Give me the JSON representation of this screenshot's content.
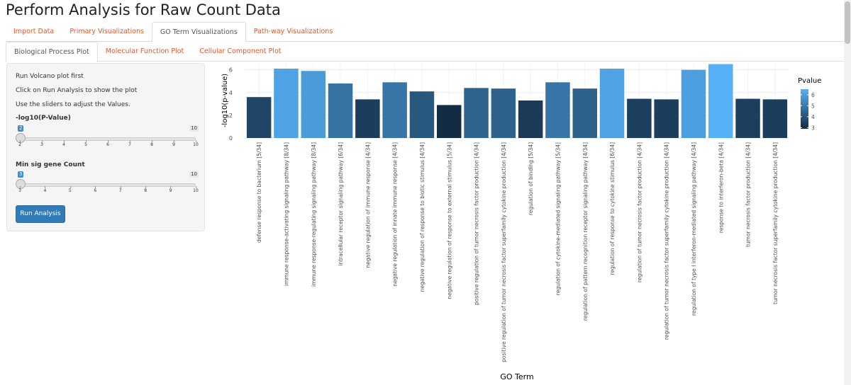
{
  "app": {
    "title": "Perform Analysis for Raw Count Data"
  },
  "main_tabs": [
    {
      "label": "Import Data",
      "active": false
    },
    {
      "label": "Primary Visualizations",
      "active": false
    },
    {
      "label": "GO Term Visualizations",
      "active": true
    },
    {
      "label": "Path-way Visualizations",
      "active": false
    }
  ],
  "sub_tabs": [
    {
      "label": "Biological Process Plot",
      "active": true
    },
    {
      "label": "Molecular Function Plot",
      "active": false
    },
    {
      "label": "Cellular Component Plot",
      "active": false
    }
  ],
  "sidebar": {
    "line1": "Run Volcano plot first",
    "line2": "Click on Run Analysis to show the plot",
    "line3": "Use the sliders to adjust the Values.",
    "slider1": {
      "label": "-log10(P-Value)",
      "value": "2",
      "max_label": "10",
      "ticks": [
        "2",
        "3",
        "4",
        "5",
        "6",
        "7",
        "8",
        "9",
        "10"
      ]
    },
    "slider2": {
      "label": "Min sig gene Count",
      "value": "3",
      "max_label": "10",
      "ticks": [
        "3",
        "4",
        "5",
        "6",
        "7",
        "8",
        "9",
        "10"
      ]
    },
    "run_button": "Run Analysis"
  },
  "colors": {
    "accent": "#e4572e",
    "button": "#337ab7",
    "low": "#132b43",
    "high": "#56b1f7"
  },
  "chart_data": {
    "type": "bar",
    "xlabel": "GO Term",
    "ylabel": "-log10(p-value)",
    "ylim": [
      0,
      6.6
    ],
    "yticks": [
      0,
      2,
      4,
      6
    ],
    "grid": true,
    "legend": {
      "title": "Pvalue",
      "placement": "right",
      "ticks": [
        3,
        4,
        5,
        6
      ]
    },
    "categories": [
      "defense response to bacterium [5/34]",
      "immune response-activating signaling pathway [8/34]",
      "immune response-regulating signaling pathway [8/34]",
      "intracellular receptor signaling pathway [6/34]",
      "negative regulation of immune response [4/34]",
      "negative regulation of innate immune response [4/34]",
      "negative regulation of response to biotic stimulus [4/34]",
      "negative regulation of response to external stimulus [5/34]",
      "positive regulation of tumor necrosis factor production [4/34]",
      "positive regulation of tumor necrosis factor superfamily cytokine production [4/34]",
      "regulation of binding [5/34]",
      "regulation of cytokine-mediated signaling pathway [5/34]",
      "regulation of pattern recognition receptor signaling pathway [4/34]",
      "regulation of response to cytokine stimulus [6/34]",
      "regulation of tumor necrosis factor production [4/34]",
      "regulation of tumor necrosis factor superfamily cytokine production [4/34]",
      "regulation of type I interferon-mediated signaling pathway [4/34]",
      "response to interferon-beta [4/34]",
      "tumor necrosis factor production [4/34]",
      "tumor necrosis factor superfamily cytokine production [4/34]"
    ],
    "values": [
      3.6,
      6.1,
      5.9,
      4.8,
      3.4,
      4.9,
      4.1,
      2.9,
      4.4,
      4.35,
      3.3,
      4.9,
      4.35,
      6.1,
      3.45,
      3.4,
      6.0,
      6.5,
      3.45,
      3.4
    ]
  }
}
